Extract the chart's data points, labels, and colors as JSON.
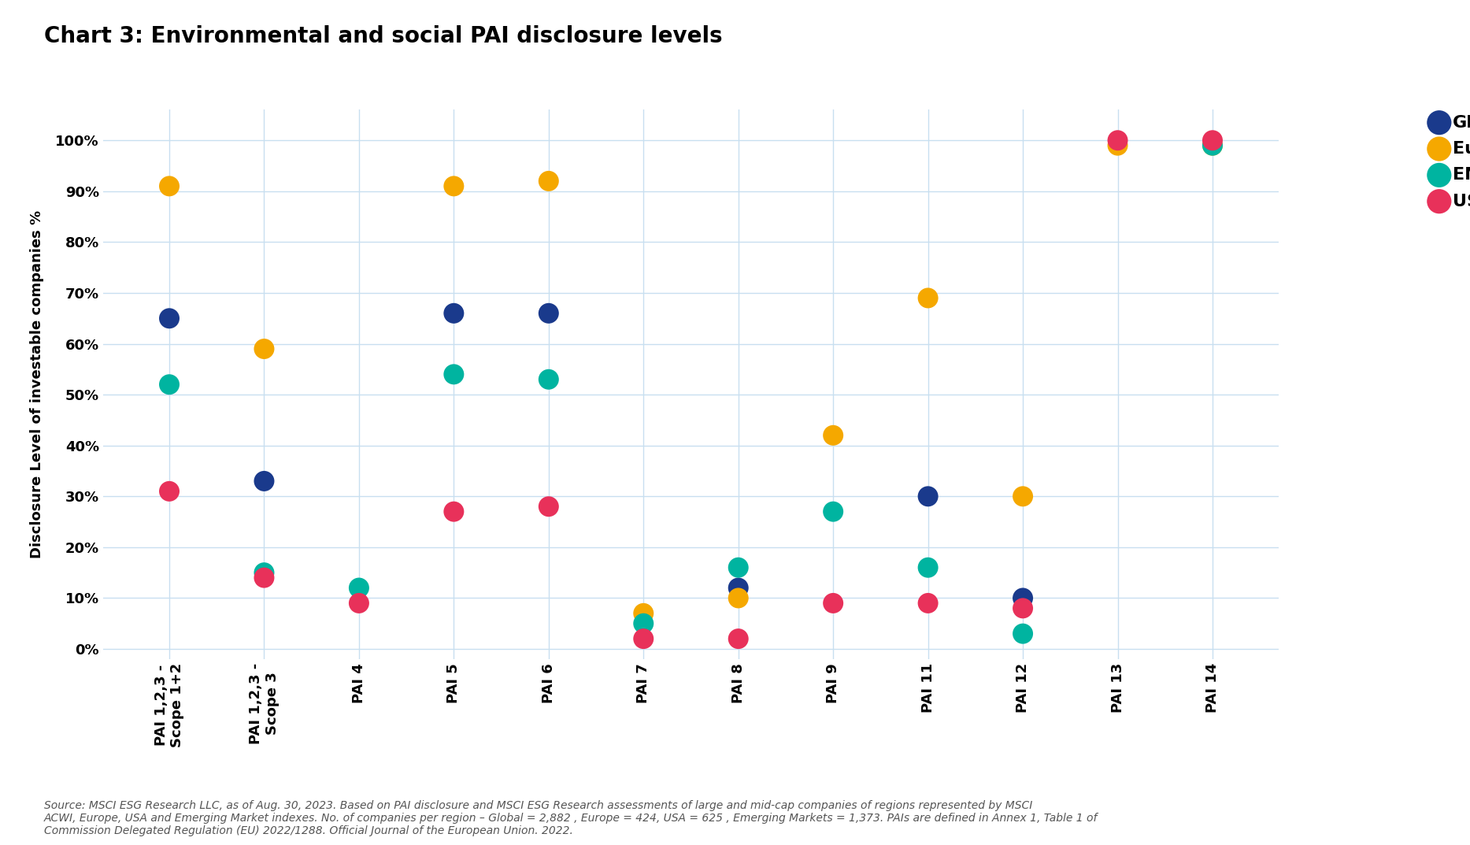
{
  "title": "Chart 3: Environmental and social PAI disclosure levels",
  "ylabel": "Disclosure Level of investable companies %",
  "categories": [
    "PAI 1,2,3 -\nScope 1+2",
    "PAI 1,2,3 -\nScope 3",
    "PAI 4",
    "PAI 5",
    "PAI 6",
    "PAI 7",
    "PAI 8",
    "PAI 9",
    "PAI 11",
    "PAI 12",
    "PAI 13",
    "PAI 14"
  ],
  "x_positions": [
    0,
    1,
    2,
    3,
    4,
    5,
    6,
    7,
    8,
    9,
    10,
    11
  ],
  "series": {
    "Global": {
      "color": "#1a3a8c",
      "values": [
        65,
        33,
        null,
        66,
        66,
        null,
        12,
        null,
        30,
        10,
        null,
        null
      ]
    },
    "Europe": {
      "color": "#f5a800",
      "values": [
        91,
        59,
        null,
        91,
        92,
        7,
        10,
        42,
        69,
        30,
        99,
        99
      ]
    },
    "EM": {
      "color": "#00b4a0",
      "values": [
        52,
        15,
        12,
        54,
        53,
        5,
        16,
        27,
        16,
        3,
        null,
        99
      ]
    },
    "USA": {
      "color": "#e8315a",
      "values": [
        31,
        14,
        9,
        27,
        28,
        2,
        2,
        9,
        9,
        8,
        100,
        100
      ]
    }
  },
  "ylim": [
    -2,
    106
  ],
  "yticks": [
    0,
    10,
    20,
    30,
    40,
    50,
    60,
    70,
    80,
    90,
    100
  ],
  "ytick_labels": [
    "0%",
    "10%",
    "20%",
    "30%",
    "40%",
    "50%",
    "60%",
    "70%",
    "80%",
    "90%",
    "100%"
  ],
  "legend_order": [
    "Global",
    "Europe",
    "EM",
    "USA"
  ],
  "marker_size": 350,
  "background_color": "#ffffff",
  "grid_color": "#c8dff0",
  "source_text": "Source: MSCI ESG Research LLC, as of Aug. 30, 2023. Based on PAI disclosure and MSCI ESG Research assessments of large and mid-cap companies of regions represented by MSCI\nACWI, Europe, USA and Emerging Market indexes. No. of companies per region – Global = 2,882 , Europe = 424, USA = 625 , Emerging Markets = 1,373. PAIs are defined in Annex 1, Table 1 of\nCommission Delegated Regulation (EU) 2022/1288. Official Journal of the European Union. 2022.",
  "title_fontsize": 20,
  "axis_label_fontsize": 13,
  "tick_fontsize": 13,
  "legend_fontsize": 16,
  "source_fontsize": 10
}
